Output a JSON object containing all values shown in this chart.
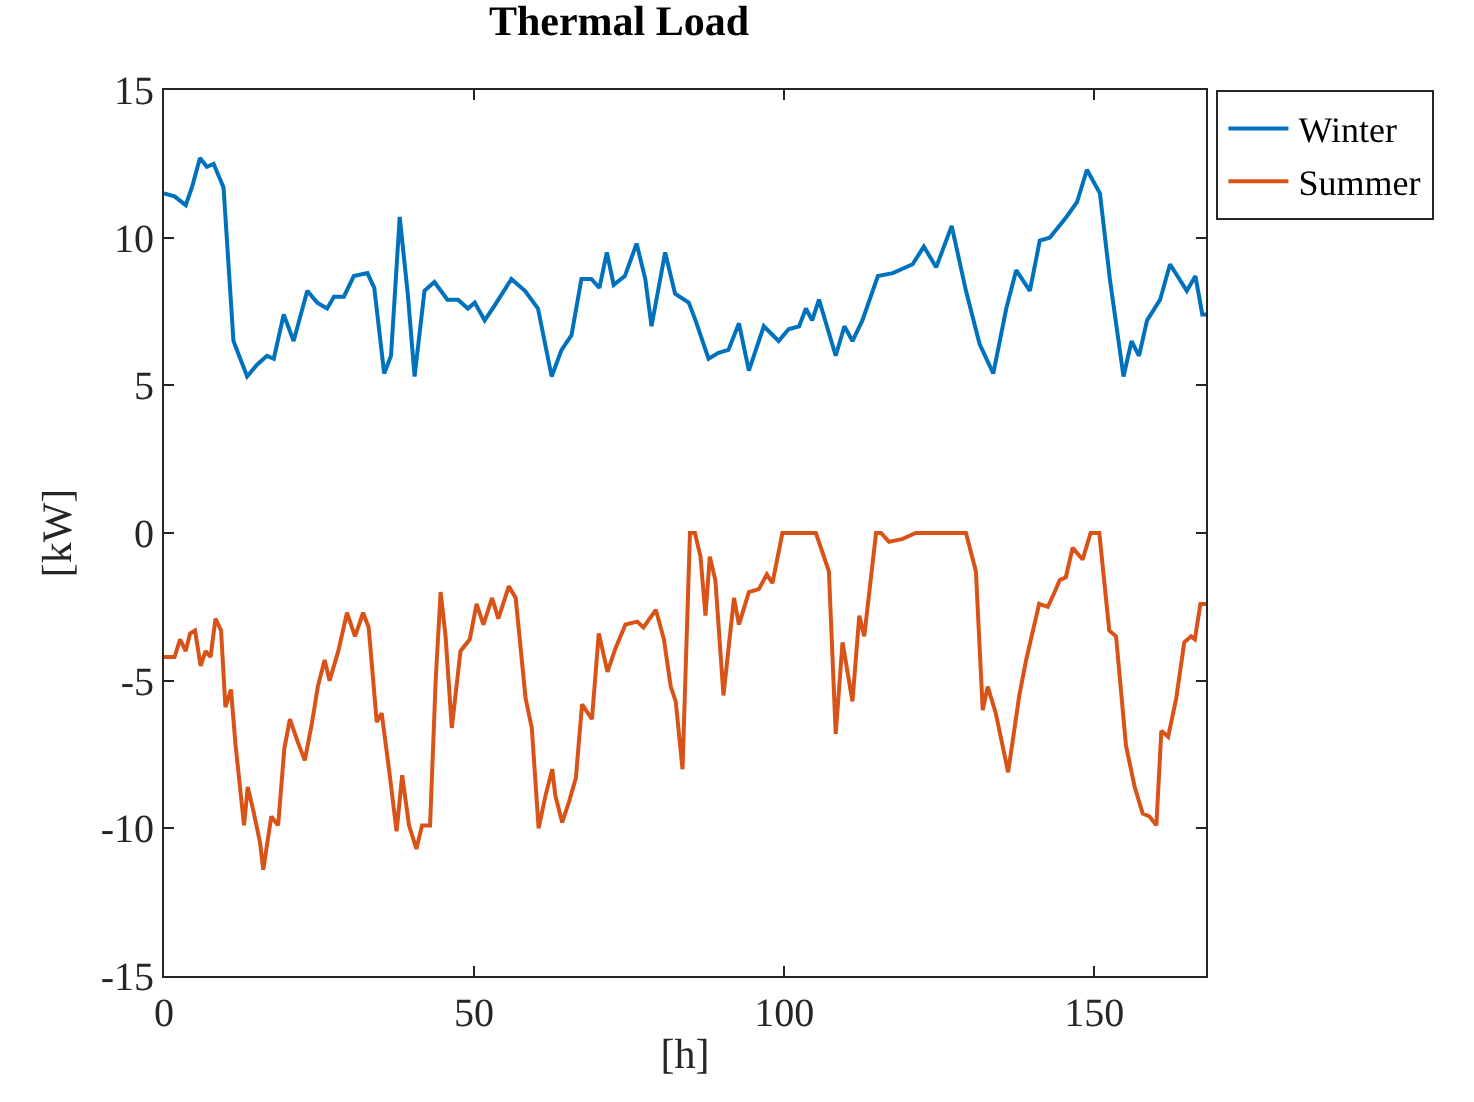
{
  "chart_data": {
    "type": "line",
    "title": "Thermal Load",
    "xlabel": "[h]",
    "ylabel": "[kW]",
    "xlim": [
      0,
      168
    ],
    "xticks": [
      0,
      50,
      100,
      150
    ],
    "ylim": [
      -15,
      15
    ],
    "yticks": [
      -15,
      -10,
      -5,
      0,
      5,
      10,
      15
    ],
    "legend": "top right",
    "marker": "none",
    "line_style": "solid",
    "series": [
      {
        "name": "Winter",
        "color": "#0072bd",
        "x": [
          0,
          1.7,
          3.5,
          4.5,
          5.8,
          6.9,
          8.0,
          9.6,
          11.2,
          13.4,
          15,
          16.6,
          17.7,
          19.3,
          20.9,
          23.1,
          24.7,
          26.3,
          27.4,
          29.0,
          30.6,
          32.8,
          33.9,
          35.5,
          36.6,
          38.0,
          39.3,
          40.4,
          42.0,
          43.6,
          45.7,
          47.4,
          49.0,
          50.1,
          51.7,
          53.3,
          56.0,
          58.2,
          60.3,
          62.5,
          64.1,
          65.7,
          67.3,
          68.9,
          70.2,
          71.4,
          72.5,
          74.3,
          76.2,
          77.6,
          78.6,
          80.8,
          82.4,
          84.6,
          85.7,
          87.8,
          89.4,
          91.0,
          92.7,
          94.3,
          96.7,
          99.1,
          100.7,
          102.4,
          103.5,
          104.5,
          105.6,
          108.3,
          109.7,
          111.0,
          112.6,
          115.1,
          117.5,
          120.7,
          122.5,
          124.5,
          127.0,
          129.3,
          131.5,
          133.7,
          135.8,
          137.4,
          139.6,
          141.2,
          142.8,
          145.5,
          147.2,
          148.8,
          150.9,
          152.5,
          154.7,
          156.0,
          157.2,
          158.5,
          160.6,
          162.2,
          164.9,
          166.3,
          167.4,
          168
        ],
        "values": [
          11.5,
          11.4,
          11.1,
          11.7,
          12.7,
          12.4,
          12.5,
          11.7,
          6.5,
          5.3,
          5.7,
          6.0,
          5.9,
          7.4,
          6.5,
          8.2,
          7.8,
          7.6,
          8.0,
          8.0,
          8.7,
          8.8,
          8.3,
          5.4,
          6.0,
          10.7,
          8.1,
          5.3,
          8.2,
          8.5,
          7.9,
          7.9,
          7.6,
          7.8,
          7.2,
          7.7,
          8.6,
          8.2,
          7.6,
          5.3,
          6.2,
          6.7,
          8.6,
          8.6,
          8.3,
          9.5,
          8.4,
          8.7,
          9.8,
          8.6,
          7.0,
          9.5,
          8.1,
          7.8,
          7.2,
          5.9,
          6.1,
          6.2,
          7.1,
          5.5,
          7.0,
          6.5,
          6.9,
          7.0,
          7.6,
          7.2,
          7.9,
          6.0,
          7.0,
          6.5,
          7.2,
          8.7,
          8.8,
          9.1,
          9.7,
          9.0,
          10.4,
          8.2,
          6.4,
          5.4,
          7.6,
          8.9,
          8.2,
          9.9,
          10.0,
          10.7,
          11.2,
          12.3,
          11.5,
          8.6,
          5.3,
          6.5,
          6.0,
          7.2,
          7.9,
          9.1,
          8.2,
          8.7,
          7.4,
          7.4
        ]
      },
      {
        "name": "Summer",
        "color": "#d95319",
        "x": [
          0,
          1.7,
          2.6,
          3.5,
          4.2,
          5.0,
          5.9,
          6.7,
          7.5,
          8.3,
          9.2,
          9.9,
          10.8,
          11.5,
          12.9,
          13.5,
          14.4,
          15.5,
          16.0,
          17.3,
          18.4,
          19.4,
          20.3,
          21.6,
          22.7,
          23.8,
          24.8,
          25.9,
          26.7,
          28.1,
          29.5,
          30.8,
          32.1,
          33.0,
          34.3,
          35.1,
          36.4,
          37.5,
          38.4,
          39.5,
          40.7,
          41.6,
          42.9,
          43.8,
          44.6,
          45.4,
          46.4,
          47.8,
          49.3,
          50.4,
          51.5,
          52.9,
          53.9,
          55.6,
          56.7,
          58.3,
          59.3,
          60.4,
          61.5,
          62.6,
          63.1,
          64.2,
          65.3,
          66.4,
          67.4,
          69.0,
          70.1,
          71.5,
          72.8,
          74.4,
          76.3,
          77.3,
          79.3,
          80.6,
          81.7,
          82.5,
          83.6,
          84.8,
          85.6,
          86.5,
          87.3,
          88.0,
          88.9,
          90.2,
          91.9,
          92.7,
          94.3,
          95.9,
          97.2,
          98.1,
          99.7,
          105.1,
          107.2,
          108.3,
          109.4,
          111.0,
          112.1,
          112.9,
          114.8,
          115.6,
          116.9,
          119.1,
          121.2,
          129.3,
          130.9,
          132.0,
          132.8,
          134.1,
          136.1,
          137.9,
          139.0,
          141.1,
          142.5,
          143.6,
          144.4,
          145.4,
          146.5,
          148.1,
          149.4,
          150.8,
          152.4,
          153.5,
          155.1,
          156.5,
          157.8,
          158.9,
          160.0,
          160.8,
          161.9,
          163.2,
          164.5,
          165.6,
          166.2,
          167.1,
          168
        ],
        "values": [
          -4.2,
          -4.2,
          -3.6,
          -4.0,
          -3.4,
          -3.3,
          -4.5,
          -4.0,
          -4.2,
          -2.9,
          -3.3,
          -5.9,
          -5.3,
          -7.1,
          -9.9,
          -8.6,
          -9.4,
          -10.5,
          -11.4,
          -9.6,
          -9.9,
          -7.3,
          -6.3,
          -7.1,
          -7.7,
          -6.5,
          -5.2,
          -4.3,
          -5.0,
          -4.0,
          -2.7,
          -3.5,
          -2.7,
          -3.2,
          -6.4,
          -6.1,
          -8.2,
          -10.1,
          -8.2,
          -9.9,
          -10.7,
          -9.9,
          -9.9,
          -5.0,
          -2.0,
          -3.5,
          -6.6,
          -4.0,
          -3.6,
          -2.4,
          -3.1,
          -2.2,
          -2.9,
          -1.8,
          -2.2,
          -5.6,
          -6.6,
          -10.0,
          -8.9,
          -8.0,
          -8.9,
          -9.8,
          -9.1,
          -8.3,
          -5.8,
          -6.3,
          -3.4,
          -4.7,
          -3.9,
          -3.1,
          -3.0,
          -3.2,
          -2.6,
          -3.6,
          -5.2,
          -5.7,
          -8.0,
          0,
          0,
          -0.8,
          -2.8,
          -0.8,
          -1.6,
          -5.5,
          -2.2,
          -3.1,
          -2.0,
          -1.9,
          -1.4,
          -1.7,
          0,
          0,
          -1.3,
          -6.8,
          -3.7,
          -5.7,
          -2.8,
          -3.5,
          0,
          0,
          -0.3,
          -0.2,
          0,
          0,
          -1.3,
          -6.0,
          -5.2,
          -6.1,
          -8.1,
          -5.5,
          -4.3,
          -2.4,
          -2.5,
          -2.0,
          -1.6,
          -1.5,
          -0.5,
          -0.9,
          0,
          0,
          -3.3,
          -3.5,
          -7.2,
          -8.6,
          -9.5,
          -9.6,
          -9.9,
          -6.7,
          -6.9,
          -5.6,
          -3.7,
          -3.5,
          -3.6,
          -2.4,
          -2.4
        ]
      }
    ]
  }
}
